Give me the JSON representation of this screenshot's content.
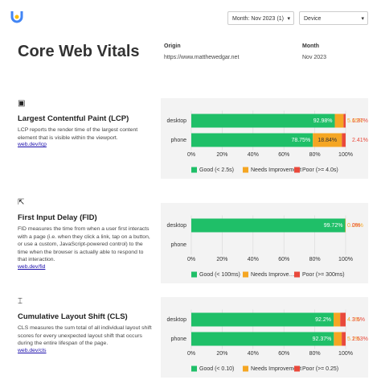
{
  "header": {
    "month_label": "Month:",
    "month_value": "Nov 2023",
    "month_count": "(1)",
    "device": "Device"
  },
  "report": {
    "title": "Core Web Vitals",
    "origin_label": "Origin",
    "origin_value": "https://www.matthewedgar.net",
    "month_label": "Month",
    "month_value": "Nov 2023"
  },
  "sections": [
    {
      "title": "Largest Contentful Paint (LCP)",
      "description": "LCP reports the render time of the largest content element that is visible within the viewport.",
      "link": "web.dev/lcp"
    },
    {
      "title": "First Input Delay (FID)",
      "description": "FID measures the time from when a user first interacts with a page (i.e. when they click a link, tap on a button, or use a custom, JavaScript-powered control) to the time when the browser is actually able to respond to that interaction.",
      "link": "web.dev/fid"
    },
    {
      "title": "Cumulative Layout Shift (CLS)",
      "description": "CLS measures the sum total of all individual layout shift scores for every unexpected layout shift that occurs during the entire lifespan of the page.",
      "link": "web.dev/cls"
    }
  ],
  "chart_data": [
    {
      "type": "bar",
      "orientation": "horizontal",
      "stacked": true,
      "categories": [
        "desktop",
        "phone"
      ],
      "series": [
        {
          "name": "Good (< 2.5s)",
          "color": "#1fbf68",
          "values": [
            92.98,
            78.75
          ],
          "value_labels": [
            "92.98%",
            "78.75%"
          ]
        },
        {
          "name": "Needs Improvement",
          "color": "#f5a623",
          "values": [
            5.65,
            18.84
          ],
          "value_labels": [
            "5.65%",
            "18.84%"
          ]
        },
        {
          "name": "Poor (>= 4.0s)",
          "color": "#e9493b",
          "values": [
            1.37,
            2.41
          ],
          "value_labels": [
            "1.37%",
            "2.41%"
          ]
        }
      ],
      "xlim": [
        0,
        100
      ],
      "xticks": [
        {
          "value": 0,
          "label": "0%"
        },
        {
          "value": 20,
          "label": "20%"
        },
        {
          "value": 40,
          "label": "40%"
        },
        {
          "value": 60,
          "label": "60%"
        },
        {
          "value": 80,
          "label": "80%"
        },
        {
          "value": 100,
          "label": "100%"
        }
      ],
      "grid": true,
      "legend": "bottom"
    },
    {
      "type": "bar",
      "orientation": "horizontal",
      "stacked": true,
      "categories": [
        "desktop",
        "phone"
      ],
      "series": [
        {
          "name": "Good (< 100ms)",
          "color": "#1fbf68",
          "values": [
            99.72,
            null
          ],
          "value_labels": [
            "99.72%",
            null
          ]
        },
        {
          "name": "Needs Improve…",
          "color": "#f5a623",
          "values": [
            0.28,
            null
          ],
          "value_labels": [
            "0.28%",
            null
          ]
        },
        {
          "name": "Poor (>= 300ms)",
          "color": "#e9493b",
          "values": [
            0,
            null
          ],
          "value_labels": [
            "0%",
            null
          ]
        }
      ],
      "xlim": [
        0,
        100
      ],
      "xticks": [
        {
          "value": 0,
          "label": "0%"
        },
        {
          "value": 20,
          "label": "20%"
        },
        {
          "value": 40,
          "label": "40%"
        },
        {
          "value": 60,
          "label": "60%"
        },
        {
          "value": 80,
          "label": "80%"
        },
        {
          "value": 100,
          "label": "100%"
        }
      ],
      "grid": true,
      "legend": "bottom"
    },
    {
      "type": "bar",
      "orientation": "horizontal",
      "stacked": true,
      "categories": [
        "desktop",
        "phone"
      ],
      "series": [
        {
          "name": "Good (< 0.10)",
          "color": "#1fbf68",
          "values": [
            92.2,
            92.37
          ],
          "value_labels": [
            "92.2%",
            "92.37%"
          ]
        },
        {
          "name": "Needs Improvement",
          "color": "#f5a623",
          "values": [
            4.3,
            5.1
          ],
          "value_labels": [
            "4.3%",
            "5.1%"
          ]
        },
        {
          "name": "Poor (>= 0.25)",
          "color": "#e9493b",
          "values": [
            3.5,
            2.53
          ],
          "value_labels": [
            "3.5%",
            "2.53%"
          ]
        }
      ],
      "xlim": [
        0,
        100
      ],
      "xticks": [
        {
          "value": 0,
          "label": "0%"
        },
        {
          "value": 20,
          "label": "20%"
        },
        {
          "value": 40,
          "label": "40%"
        },
        {
          "value": 60,
          "label": "60%"
        },
        {
          "value": 80,
          "label": "80%"
        },
        {
          "value": 100,
          "label": "100%"
        }
      ],
      "grid": true,
      "legend": "bottom"
    }
  ]
}
